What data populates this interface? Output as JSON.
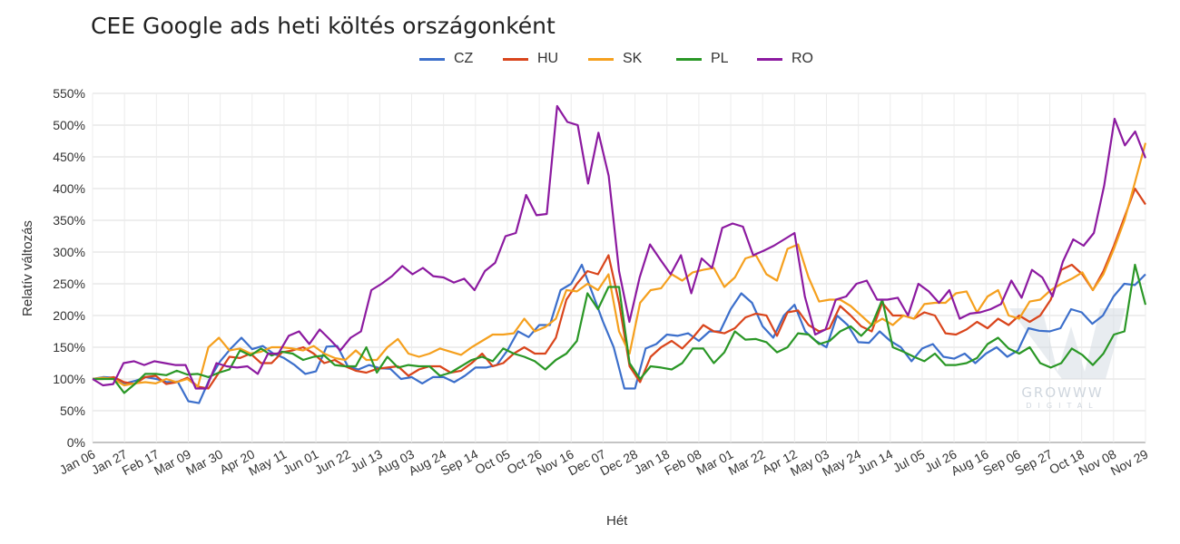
{
  "chart_data": {
    "type": "line",
    "title": "CEE Google ads heti költés országonként",
    "xlabel": "Hét",
    "ylabel": "Relatív változás",
    "ylim": [
      0,
      550
    ],
    "yticks": [
      "0%",
      "50%",
      "100%",
      "150%",
      "200%",
      "250%",
      "300%",
      "350%",
      "400%",
      "450%",
      "500%",
      "550%"
    ],
    "xtick_labels": [
      "Jan 06",
      "Jan 27",
      "Feb 17",
      "Mar 09",
      "Mar 30",
      "Apr 20",
      "May 11",
      "Jun 01",
      "Jun 22",
      "Jul 13",
      "Aug 03",
      "Aug 24",
      "Sep 14",
      "Oct 05",
      "Oct 26",
      "Nov 16",
      "Dec 07",
      "Dec 28",
      "Jan 18",
      "Feb 08",
      "Mar 01",
      "Mar 22",
      "Apr 12",
      "May 03",
      "May 24",
      "Jun 14",
      "Jul 05",
      "Jul 26",
      "Aug 16",
      "Sep 06",
      "Sep 27",
      "Oct 18",
      "Nov 08",
      "Nov 29"
    ],
    "grid": true,
    "legend_position": "top-center",
    "series": [
      {
        "name": "CZ",
        "color": "#3c6fcb",
        "values": [
          100,
          103,
          102,
          93,
          97,
          103,
          100,
          95,
          96,
          65,
          62,
          100,
          128,
          148,
          165,
          147,
          152,
          140,
          133,
          122,
          108,
          112,
          151,
          152,
          120,
          115,
          122,
          117,
          116,
          100,
          103,
          93,
          103,
          103,
          95,
          105,
          118,
          118,
          122,
          145,
          175,
          166,
          185,
          185,
          240,
          250,
          280,
          235,
          190,
          150,
          85,
          85,
          148,
          155,
          170,
          168,
          172,
          160,
          175,
          175,
          210,
          235,
          220,
          183,
          165,
          200,
          217,
          175,
          160,
          150,
          200,
          185,
          158,
          157,
          175,
          160,
          150,
          128,
          148,
          155,
          135,
          132,
          140,
          125,
          140,
          150,
          135,
          145,
          180,
          176,
          175,
          180,
          210,
          205,
          187,
          200,
          230,
          250,
          248,
          265
        ]
      },
      {
        "name": "HU",
        "color": "#d9451c",
        "values": [
          100,
          100,
          103,
          95,
          92,
          103,
          105,
          92,
          95,
          102,
          88,
          85,
          110,
          135,
          133,
          140,
          125,
          125,
          142,
          145,
          150,
          140,
          125,
          130,
          120,
          113,
          110,
          116,
          118,
          120,
          105,
          115,
          120,
          120,
          110,
          113,
          125,
          140,
          120,
          125,
          140,
          150,
          140,
          140,
          165,
          225,
          250,
          270,
          265,
          295,
          220,
          120,
          95,
          135,
          150,
          160,
          148,
          165,
          185,
          175,
          172,
          180,
          197,
          203,
          200,
          168,
          205,
          208,
          185,
          175,
          180,
          215,
          200,
          183,
          175,
          220,
          200,
          200,
          195,
          205,
          200,
          172,
          170,
          178,
          190,
          180,
          195,
          185,
          200,
          190,
          200,
          225,
          272,
          280,
          265,
          240,
          270,
          310,
          355,
          400,
          375
        ]
      },
      {
        "name": "SK",
        "color": "#f5a01e",
        "values": [
          100,
          102,
          100,
          90,
          93,
          95,
          93,
          100,
          95,
          100,
          88,
          150,
          165,
          145,
          148,
          140,
          143,
          150,
          150,
          148,
          145,
          152,
          140,
          133,
          130,
          145,
          130,
          130,
          150,
          163,
          140,
          135,
          140,
          148,
          143,
          138,
          150,
          160,
          170,
          170,
          172,
          195,
          175,
          182,
          195,
          240,
          238,
          250,
          240,
          265,
          175,
          140,
          220,
          240,
          243,
          265,
          255,
          268,
          272,
          275,
          245,
          260,
          290,
          295,
          265,
          255,
          305,
          312,
          260,
          222,
          225,
          225,
          215,
          200,
          185,
          195,
          185,
          200,
          195,
          218,
          220,
          220,
          235,
          238,
          205,
          230,
          240,
          200,
          195,
          222,
          225,
          240,
          250,
          258,
          268,
          240,
          265,
          305,
          350,
          410,
          472
        ]
      },
      {
        "name": "PL",
        "color": "#2a9726",
        "values": [
          100,
          100,
          100,
          78,
          92,
          108,
          108,
          106,
          113,
          107,
          108,
          103,
          110,
          115,
          145,
          137,
          148,
          137,
          143,
          140,
          130,
          135,
          137,
          122,
          120,
          120,
          150,
          110,
          135,
          118,
          122,
          120,
          120,
          105,
          110,
          120,
          130,
          135,
          128,
          148,
          140,
          135,
          128,
          115,
          130,
          140,
          160,
          235,
          210,
          245,
          245,
          125,
          100,
          120,
          118,
          115,
          125,
          148,
          148,
          125,
          142,
          175,
          162,
          163,
          158,
          142,
          150,
          172,
          170,
          155,
          160,
          175,
          183,
          168,
          185,
          225,
          150,
          143,
          135,
          128,
          140,
          122,
          122,
          125,
          133,
          155,
          165,
          148,
          140,
          150,
          125,
          118,
          125,
          148,
          138,
          122,
          140,
          170,
          175,
          280,
          217
        ]
      },
      {
        "name": "RO",
        "color": "#8c1aa0",
        "values": [
          100,
          90,
          92,
          125,
          128,
          122,
          128,
          125,
          122,
          122,
          85,
          85,
          125,
          120,
          118,
          120,
          108,
          140,
          140,
          168,
          175,
          155,
          178,
          162,
          145,
          165,
          175,
          240,
          250,
          262,
          278,
          265,
          275,
          262,
          260,
          252,
          258,
          240,
          270,
          283,
          325,
          330,
          390,
          358,
          360,
          530,
          505,
          500,
          408,
          488,
          420,
          270,
          190,
          260,
          312,
          288,
          265,
          295,
          235,
          290,
          275,
          338,
          345,
          340,
          295,
          302,
          310,
          320,
          330,
          230,
          170,
          178,
          225,
          230,
          250,
          255,
          225,
          225,
          228,
          200,
          250,
          238,
          220,
          240,
          195,
          203,
          205,
          210,
          218,
          255,
          228,
          272,
          260,
          230,
          285,
          320,
          310,
          330,
          405,
          510,
          468,
          490,
          448
        ]
      }
    ]
  },
  "watermark": {
    "main": "GROWWW",
    "sub": "DIGITAL"
  }
}
